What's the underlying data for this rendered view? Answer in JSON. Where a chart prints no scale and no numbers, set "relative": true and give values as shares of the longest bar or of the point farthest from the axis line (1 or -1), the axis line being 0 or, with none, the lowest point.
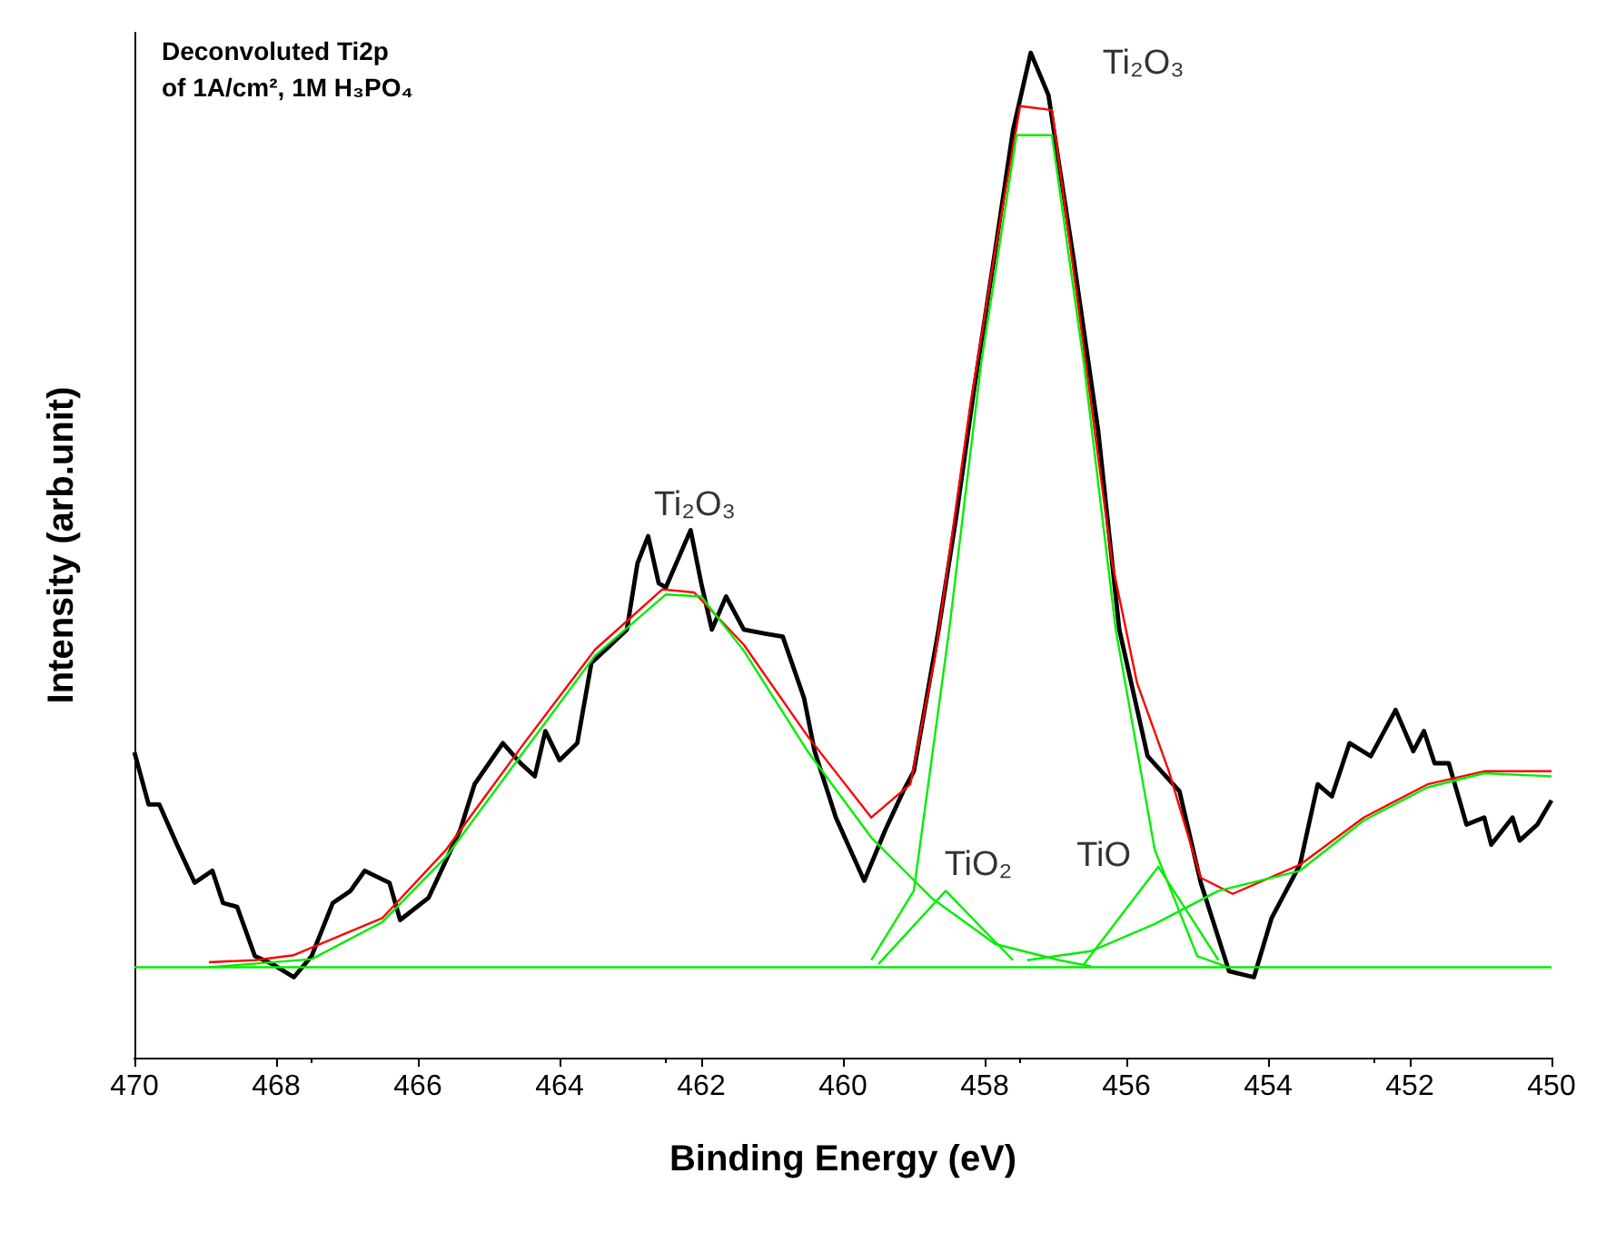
{
  "chart_data": {
    "type": "line",
    "title": "Deconvoluted Ti2p",
    "subtitle": "of 1A/cm², 1M H₃PO₄",
    "xlabel": "Binding Energy (eV)",
    "ylabel": "Intensity (arb.unit)",
    "relative": true,
    "xlim": [
      470,
      450
    ],
    "xticks": [
      470,
      468,
      466,
      464,
      462,
      460,
      458,
      456,
      454,
      452,
      450
    ],
    "grid": false,
    "marker": "none",
    "line_style": "solid",
    "annotations": [
      {
        "text": "Ti₂O₃",
        "x": 462.5,
        "y": 0.461
      },
      {
        "text": "Ti₂O₃",
        "x": 457.35,
        "y": 1.0
      },
      {
        "text": "TiO₂",
        "x": 458.55,
        "y": 0.166
      },
      {
        "text": "TiO",
        "x": 455.55,
        "y": 0.19
      }
    ],
    "series": [
      {
        "color": "#000000",
        "x": [
          470.0,
          469.8,
          469.65,
          469.4,
          469.15,
          468.9,
          468.75,
          468.55,
          468.3,
          468.05,
          467.75,
          467.5,
          467.2,
          466.95,
          466.75,
          466.4,
          466.25,
          465.85,
          465.4,
          465.2,
          464.8,
          464.55,
          464.35,
          464.2,
          464.0,
          463.75,
          463.55,
          463.35,
          463.05,
          462.9,
          462.75,
          462.6,
          462.5,
          462.15,
          462.0,
          461.85,
          461.65,
          461.4,
          461.1,
          460.85,
          460.55,
          460.4,
          460.1,
          459.7,
          459.4,
          459.15,
          459.0,
          458.75,
          458.65,
          458.4,
          458.15,
          457.85,
          457.6,
          457.35,
          457.1,
          456.75,
          456.4,
          456.1,
          455.7,
          455.25,
          454.95,
          454.55,
          454.2,
          453.95,
          453.55,
          453.3,
          453.1,
          452.85,
          452.55,
          452.2,
          451.95,
          451.8,
          451.65,
          451.45,
          451.2,
          450.95,
          450.85,
          450.55,
          450.45,
          450.2,
          450.0
        ],
        "values": [
          0.304,
          0.252,
          0.252,
          0.212,
          0.174,
          0.186,
          0.154,
          0.15,
          0.101,
          0.093,
          0.08,
          0.101,
          0.154,
          0.166,
          0.186,
          0.174,
          0.137,
          0.159,
          0.227,
          0.272,
          0.313,
          0.293,
          0.28,
          0.325,
          0.296,
          0.313,
          0.393,
          0.406,
          0.426,
          0.492,
          0.519,
          0.472,
          0.468,
          0.525,
          0.472,
          0.426,
          0.459,
          0.426,
          0.422,
          0.419,
          0.358,
          0.305,
          0.239,
          0.176,
          0.227,
          0.265,
          0.285,
          0.386,
          0.426,
          0.539,
          0.665,
          0.804,
          0.923,
          1.0,
          0.958,
          0.797,
          0.625,
          0.426,
          0.3,
          0.265,
          0.174,
          0.086,
          0.08,
          0.139,
          0.192,
          0.272,
          0.26,
          0.313,
          0.3,
          0.346,
          0.305,
          0.325,
          0.293,
          0.293,
          0.232,
          0.239,
          0.212,
          0.239,
          0.216,
          0.232,
          0.256
        ]
      },
      {
        "color": "#ff0000",
        "x": [
          468.95,
          468.3,
          467.75,
          466.5,
          465.6,
          464.5,
          463.5,
          462.55,
          462.1,
          461.4,
          460.5,
          459.6,
          459.05,
          458.7,
          458.2,
          457.85,
          457.5,
          457.05,
          456.7,
          456.2,
          455.85,
          455.4,
          454.95,
          454.5,
          453.55,
          452.65,
          451.75,
          450.95,
          450.0
        ],
        "values": [
          0.095,
          0.097,
          0.102,
          0.139,
          0.207,
          0.313,
          0.406,
          0.466,
          0.463,
          0.411,
          0.32,
          0.239,
          0.272,
          0.399,
          0.651,
          0.804,
          0.947,
          0.943,
          0.759,
          0.492,
          0.373,
          0.285,
          0.179,
          0.163,
          0.192,
          0.239,
          0.272,
          0.285,
          0.285
        ]
      },
      {
        "color": "#00ee00",
        "x": [
          470.0,
          450.0
        ],
        "values": [
          0.09,
          0.09
        ]
      },
      {
        "color": "#00ee00",
        "x": [
          468.95,
          467.5,
          466.5,
          465.6,
          464.5,
          463.5,
          462.5,
          462.0,
          461.4,
          460.5,
          459.6,
          458.75,
          457.85,
          456.95,
          456.5
        ],
        "values": [
          0.09,
          0.098,
          0.135,
          0.2,
          0.305,
          0.4,
          0.461,
          0.459,
          0.405,
          0.305,
          0.219,
          0.159,
          0.113,
          0.097,
          0.091
        ]
      },
      {
        "color": "#00ee00",
        "x": [
          459.6,
          459.0,
          458.5,
          458.05,
          457.55,
          457.05,
          456.6,
          456.15,
          455.6,
          455.0,
          454.6
        ],
        "values": [
          0.097,
          0.166,
          0.426,
          0.691,
          0.918,
          0.918,
          0.691,
          0.426,
          0.207,
          0.101,
          0.091
        ]
      },
      {
        "color": "#00ee00",
        "x": [
          459.5,
          458.55,
          457.6
        ],
        "values": [
          0.093,
          0.166,
          0.097
        ]
      },
      {
        "color": "#00ee00",
        "x": [
          456.6,
          455.55,
          454.7
        ],
        "values": [
          0.093,
          0.19,
          0.097
        ]
      },
      {
        "color": "#00ee00",
        "x": [
          457.4,
          456.5,
          455.6,
          454.7,
          453.55,
          452.65,
          451.75,
          450.95,
          450.0
        ],
        "values": [
          0.097,
          0.106,
          0.133,
          0.166,
          0.186,
          0.236,
          0.269,
          0.283,
          0.28
        ]
      }
    ]
  }
}
